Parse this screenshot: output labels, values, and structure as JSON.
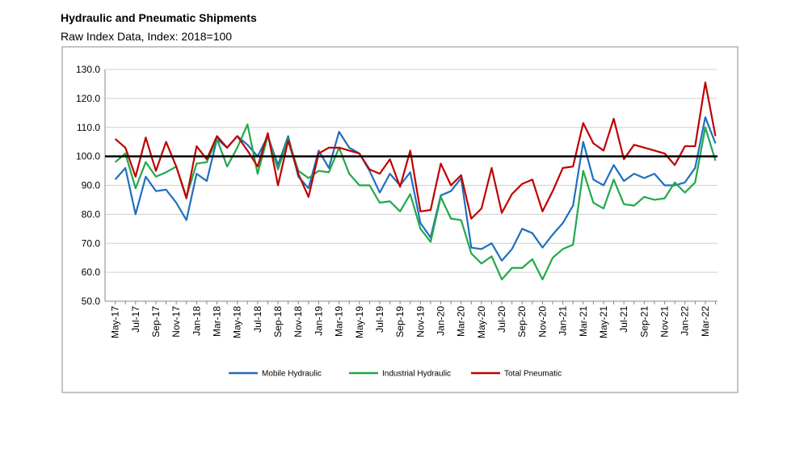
{
  "chart_data": {
    "type": "line",
    "title": "Hydraulic and Pneumatic Shipments",
    "subtitle": "Raw Index Data, Index: 2018=100",
    "categories": [
      "May-17",
      null,
      "Jul-17",
      null,
      "Sep-17",
      null,
      "Nov-17",
      null,
      "Jan-18",
      null,
      "Mar-18",
      null,
      "May-18",
      null,
      "Jul-18",
      null,
      "Sep-18",
      null,
      "Nov-18",
      null,
      "Jan-19",
      null,
      "Mar-19",
      null,
      "May-19",
      null,
      "Jul-19",
      null,
      "Sep-19",
      null,
      "Nov-19",
      null,
      "Jan-20",
      null,
      "Mar-20",
      null,
      "May-20",
      null,
      "Jul-20",
      null,
      "Sep-20",
      null,
      "Nov-20",
      null,
      "Jan-21",
      null,
      "Mar-21",
      null,
      "May-21",
      null,
      "Jul-21",
      null,
      "Sep-21",
      null,
      "Nov-21",
      null,
      "Jan-22",
      null,
      "Mar-22",
      null
    ],
    "series": [
      {
        "name": "Mobile Hydraulic",
        "color": "#1f6fbf",
        "values": [
          92,
          96,
          80,
          93,
          88,
          88.5,
          84,
          78,
          94,
          91.5,
          106,
          103,
          107,
          104,
          100,
          107,
          97,
          107,
          93,
          89,
          102,
          96,
          108.5,
          103,
          101,
          95,
          87.5,
          94,
          90,
          94.5,
          77,
          72,
          86.5,
          88,
          92.5,
          68.5,
          68,
          70,
          64,
          68,
          75,
          73.5,
          68.5,
          73,
          77,
          83,
          105,
          92,
          90,
          97,
          91.5,
          94,
          92.5,
          94,
          90,
          90,
          91,
          96,
          113.5,
          104.5
        ]
      },
      {
        "name": "Industrial Hydraulic",
        "color": "#22a84a",
        "values": [
          98,
          101,
          89,
          98,
          93,
          94.5,
          96.5,
          86,
          97.5,
          98,
          106,
          96.5,
          103,
          111,
          94,
          107,
          95.5,
          106,
          95,
          92.5,
          95,
          94.5,
          103,
          94,
          90,
          90,
          84,
          84.5,
          81,
          87,
          75,
          70.5,
          86,
          78.5,
          78,
          66.5,
          63,
          65.5,
          57.5,
          61.5,
          61.5,
          64.5,
          57.5,
          65,
          68,
          69.5,
          95,
          84,
          82,
          92,
          83.5,
          83,
          86,
          85,
          85.5,
          91,
          87.5,
          91,
          110,
          98.5
        ]
      },
      {
        "name": "Total Pneumatic",
        "color": "#c00000",
        "values": [
          106,
          103,
          93,
          106.5,
          95,
          105,
          96.5,
          85.5,
          103.5,
          99,
          107,
          103,
          107,
          102,
          96.5,
          108,
          90,
          105.5,
          94,
          86,
          101,
          103,
          103,
          102,
          101,
          95.5,
          94,
          99,
          89.5,
          102,
          81,
          81.5,
          97.5,
          90,
          93.5,
          78.5,
          82,
          96,
          80.5,
          87,
          90.5,
          92,
          81,
          88,
          96,
          96.5,
          111.5,
          104.5,
          102,
          113,
          99,
          104,
          103,
          102,
          101,
          97,
          103.5,
          103.5,
          125.5,
          107
        ]
      }
    ],
    "reference_line": 100,
    "ylim": [
      50,
      130
    ],
    "yticks": [
      {
        "value": 50,
        "label": "50.0"
      },
      {
        "value": 60,
        "label": "60.0"
      },
      {
        "value": 70,
        "label": "70.0"
      },
      {
        "value": 80,
        "label": "80.0"
      },
      {
        "value": 90,
        "label": "90.0"
      },
      {
        "value": 100,
        "label": "100.0"
      },
      {
        "value": 110,
        "label": "110.0"
      },
      {
        "value": 120,
        "label": "120.0"
      },
      {
        "value": 130,
        "label": "130.0"
      }
    ],
    "grid": true,
    "legend": "bottom"
  }
}
